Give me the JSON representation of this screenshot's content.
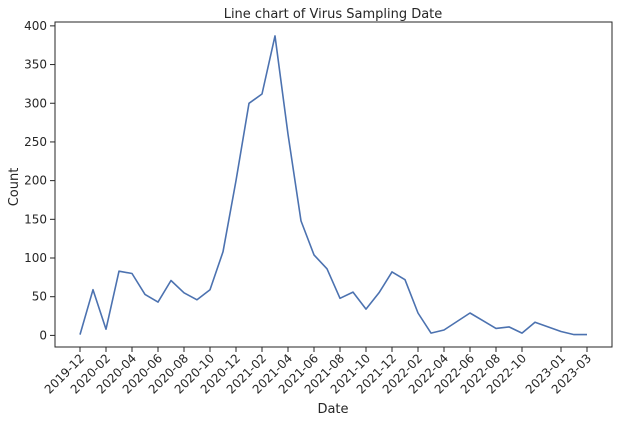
{
  "chart_data": {
    "type": "line",
    "title": "Line chart of Virus Sampling Date",
    "xlabel": "Date",
    "ylabel": "Count",
    "ylim": [
      -15,
      405
    ],
    "yticks": [
      0,
      50,
      100,
      150,
      200,
      250,
      300,
      350,
      400
    ],
    "xticks": [
      "2019-12",
      "2020-02",
      "2020-04",
      "2020-06",
      "2020-08",
      "2020-10",
      "2020-12",
      "2021-02",
      "2021-04",
      "2021-06",
      "2021-08",
      "2021-10",
      "2021-12",
      "2022-02",
      "2022-04",
      "2022-06",
      "2022-08",
      "2022-10",
      "2023-01",
      "2023-03"
    ],
    "grid": false,
    "line_color": "#4c72b0",
    "x": [
      "2019-12",
      "2020-01",
      "2020-02",
      "2020-03",
      "2020-04",
      "2020-05",
      "2020-06",
      "2020-07",
      "2020-08",
      "2020-09",
      "2020-10",
      "2020-11",
      "2020-12",
      "2021-01",
      "2021-02",
      "2021-03",
      "2021-04",
      "2021-05",
      "2021-06",
      "2021-07",
      "2021-08",
      "2021-09",
      "2021-10",
      "2021-11",
      "2021-12",
      "2022-01",
      "2022-02",
      "2022-03",
      "2022-04",
      "2022-05",
      "2022-06",
      "2022-07",
      "2022-08",
      "2022-09",
      "2022-10",
      "2022-11",
      "2023-01",
      "2023-02",
      "2023-03"
    ],
    "values": [
      1,
      59,
      8,
      83,
      80,
      53,
      43,
      71,
      55,
      46,
      59,
      108,
      200,
      300,
      312,
      387,
      260,
      148,
      104,
      86,
      48,
      56,
      34,
      55,
      82,
      72,
      29,
      3,
      7,
      18,
      29,
      19,
      9,
      11,
      3,
      17,
      5,
      1,
      1
    ]
  }
}
